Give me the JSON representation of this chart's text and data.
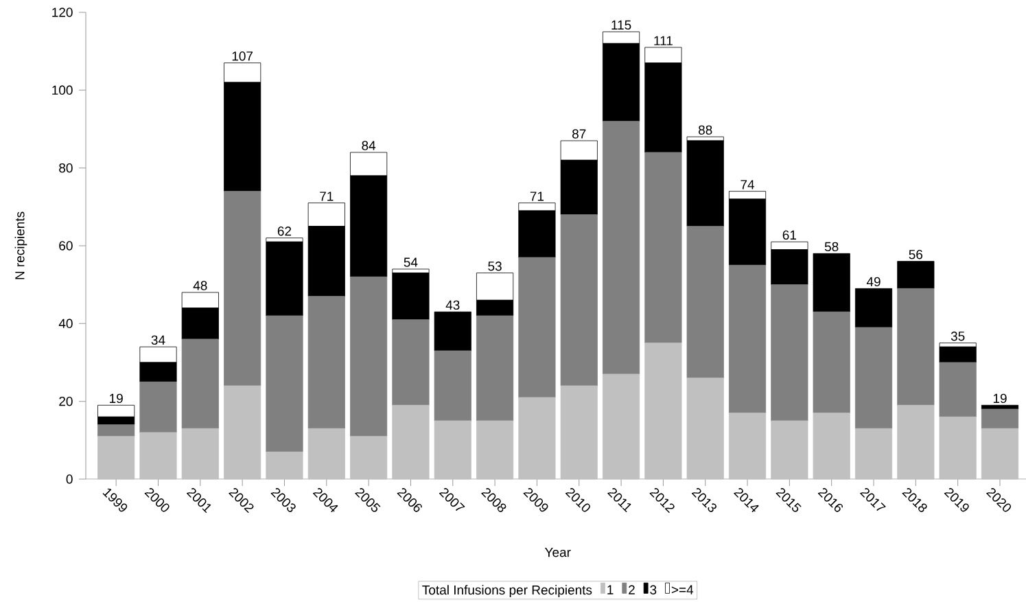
{
  "chart_data": {
    "type": "bar",
    "stacked": true,
    "xlabel": "Year",
    "ylabel": "N recipients",
    "legend_title": "Total Infusions per Recipients",
    "legend": "bottom",
    "categories": [
      "1999",
      "2000",
      "2001",
      "2002",
      "2003",
      "2004",
      "2005",
      "2006",
      "2007",
      "2008",
      "2009",
      "2010",
      "2011",
      "2012",
      "2013",
      "2014",
      "2015",
      "2016",
      "2017",
      "2018",
      "2019",
      "2020"
    ],
    "series": [
      {
        "name": "1",
        "color": "#c0c0c0",
        "values": [
          11,
          12,
          13,
          24,
          7,
          13,
          11,
          19,
          15,
          15,
          21,
          24,
          27,
          35,
          26,
          17,
          15,
          17,
          13,
          19,
          16,
          13
        ]
      },
      {
        "name": "2",
        "color": "#808080",
        "values": [
          3,
          13,
          23,
          50,
          35,
          34,
          41,
          22,
          18,
          27,
          36,
          44,
          65,
          49,
          39,
          38,
          35,
          26,
          26,
          30,
          14,
          5
        ]
      },
      {
        "name": "3",
        "color": "#000000",
        "values": [
          2,
          5,
          8,
          28,
          19,
          18,
          26,
          12,
          10,
          4,
          12,
          14,
          20,
          23,
          22,
          17,
          9,
          15,
          10,
          7,
          4,
          1
        ]
      },
      {
        "name": ">=4",
        "color": "#ffffff",
        "values": [
          3,
          4,
          4,
          5,
          1,
          6,
          6,
          1,
          0,
          7,
          2,
          5,
          3,
          4,
          1,
          2,
          2,
          0,
          0,
          0,
          1,
          0
        ]
      }
    ],
    "totals": [
      "19",
      "34",
      "48",
      "107",
      "62",
      "71",
      "84",
      "54",
      "43",
      "53",
      "71",
      "87",
      "115",
      "111",
      "88",
      "74",
      "61",
      "58",
      "49",
      "56",
      "35",
      "19"
    ],
    "ylim": [
      0,
      120
    ],
    "yticks": [
      0,
      20,
      40,
      60,
      80,
      100,
      120
    ]
  }
}
